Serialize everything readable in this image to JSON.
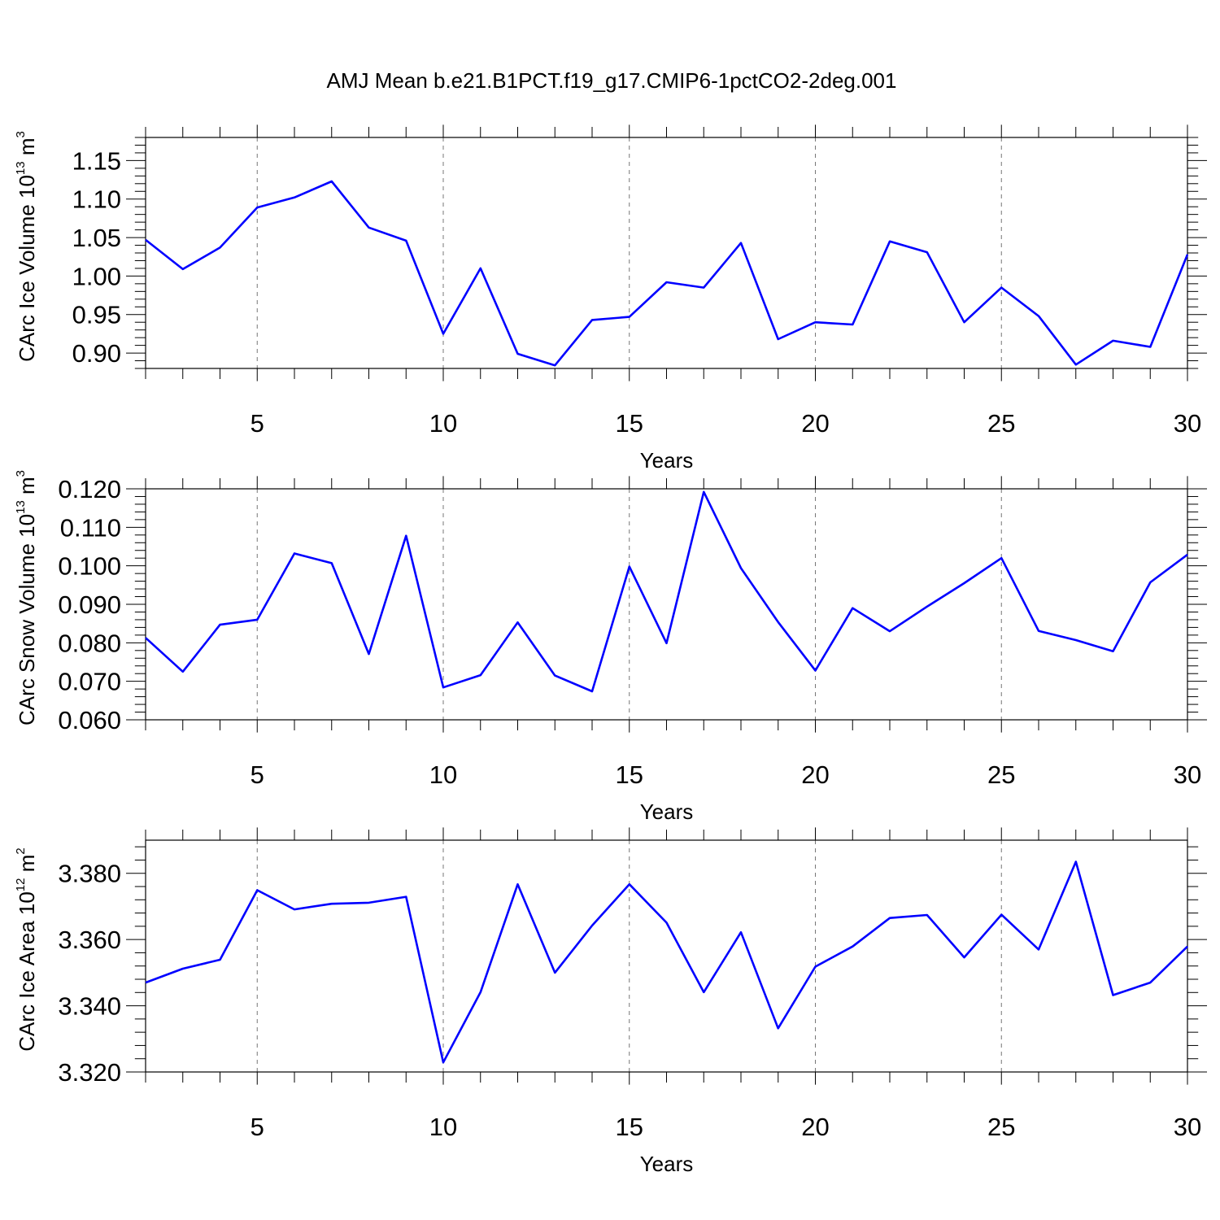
{
  "title": "AMJ Mean b.e21.B1PCT.f19_g17.CMIP6-1pctCO2-2deg.001",
  "colors": {
    "line": "#0000ff",
    "frame": "#000000",
    "grid": "#777777"
  },
  "chart_data": [
    {
      "type": "line",
      "xlabel": "Years",
      "ylabel": {
        "main": "CArc Ice Volume 10",
        "exp": "13",
        "unit": " m",
        "unit_exp": "3"
      },
      "xlim": [
        2,
        30
      ],
      "ylim": [
        0.88,
        1.18
      ],
      "xticks": [
        5,
        10,
        15,
        20,
        25,
        30
      ],
      "yticks": [
        0.9,
        0.95,
        1.0,
        1.05,
        1.1,
        1.15
      ],
      "ytick_labels": [
        "0.90",
        "0.95",
        "1.00",
        "1.05",
        "1.10",
        "1.15"
      ],
      "yminor_step": 0.01,
      "grid": "vertical dashed at major x ticks",
      "x": [
        2,
        3,
        4,
        5,
        6,
        7,
        8,
        9,
        10,
        11,
        12,
        13,
        14,
        15,
        16,
        17,
        18,
        19,
        20,
        21,
        22,
        23,
        24,
        25,
        26,
        27,
        28,
        29,
        30
      ],
      "values": [
        1.047,
        1.009,
        1.037,
        1.089,
        1.102,
        1.123,
        1.063,
        1.046,
        0.925,
        1.01,
        0.899,
        0.884,
        0.943,
        0.947,
        0.992,
        0.985,
        1.043,
        0.918,
        0.94,
        0.937,
        1.045,
        1.031,
        0.94,
        0.985,
        0.948,
        0.885,
        0.916,
        0.908,
        1.028
      ]
    },
    {
      "type": "line",
      "xlabel": "Years",
      "ylabel": {
        "main": "CArc Snow Volume 10",
        "exp": "13",
        "unit": " m",
        "unit_exp": "3"
      },
      "xlim": [
        2,
        30
      ],
      "ylim": [
        0.06,
        0.12
      ],
      "xticks": [
        5,
        10,
        15,
        20,
        25,
        30
      ],
      "yticks": [
        0.06,
        0.07,
        0.08,
        0.09,
        0.1,
        0.11,
        0.12
      ],
      "ytick_labels": [
        "0.060",
        "0.070",
        "0.080",
        "0.090",
        "0.100",
        "0.110",
        "0.120"
      ],
      "yminor_step": 0.002,
      "grid": "vertical dashed at major x ticks",
      "x": [
        2,
        3,
        4,
        5,
        6,
        7,
        8,
        9,
        10,
        11,
        12,
        13,
        14,
        15,
        16,
        17,
        18,
        19,
        20,
        21,
        22,
        23,
        24,
        25,
        26,
        27,
        28,
        29,
        30
      ],
      "values": [
        0.0813,
        0.0725,
        0.0847,
        0.086,
        0.1032,
        0.1007,
        0.0771,
        0.1078,
        0.0684,
        0.0716,
        0.0853,
        0.0715,
        0.0674,
        0.0998,
        0.0799,
        0.1192,
        0.0994,
        0.0854,
        0.0728,
        0.089,
        0.083,
        0.0894,
        0.0955,
        0.102,
        0.0831,
        0.0807,
        0.0778,
        0.0957,
        0.1029
      ]
    },
    {
      "type": "line",
      "xlabel": "Years",
      "ylabel": {
        "main": "CArc Ice Area 10",
        "exp": "12",
        "unit": " m",
        "unit_exp": "2"
      },
      "xlim": [
        2,
        30
      ],
      "ylim": [
        3.32,
        3.39
      ],
      "xticks": [
        5,
        10,
        15,
        20,
        25,
        30
      ],
      "yticks": [
        3.32,
        3.34,
        3.36,
        3.38
      ],
      "ytick_labels": [
        "3.320",
        "3.340",
        "3.360",
        "3.380"
      ],
      "yminor_step": 0.004,
      "grid": "vertical dashed at major x ticks",
      "x": [
        2,
        3,
        4,
        5,
        6,
        7,
        8,
        9,
        10,
        11,
        12,
        13,
        14,
        15,
        16,
        17,
        18,
        19,
        20,
        21,
        22,
        23,
        24,
        25,
        26,
        27,
        28,
        29,
        30
      ],
      "values": [
        3.347,
        3.3512,
        3.3539,
        3.3749,
        3.3691,
        3.3708,
        3.3711,
        3.3729,
        3.3229,
        3.3441,
        3.3767,
        3.35,
        3.3642,
        3.3767,
        3.3651,
        3.3441,
        3.3622,
        3.3332,
        3.3518,
        3.3579,
        3.3665,
        3.3674,
        3.3546,
        3.3675,
        3.357,
        3.3835,
        3.3432,
        3.347,
        3.3579
      ]
    }
  ]
}
